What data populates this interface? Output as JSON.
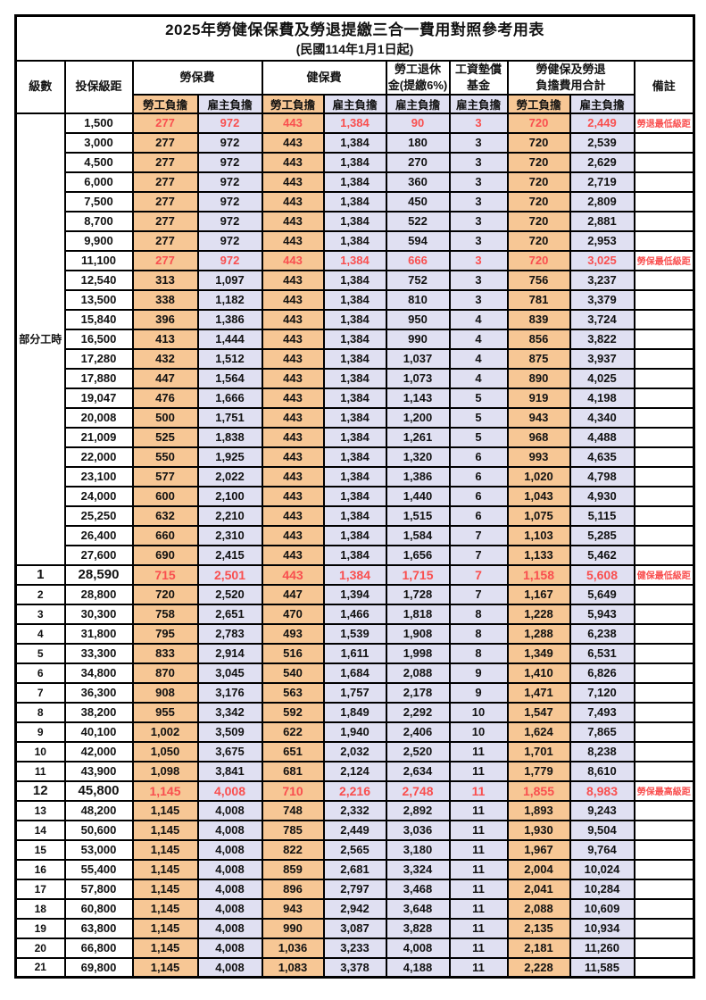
{
  "title": "2025年勞健保保費及勞退提繳三合一費用對照參考用表",
  "subtitle": "(民國114年1月1日起)",
  "colors": {
    "employee_bg": "#F7C795",
    "employer_bg": "#E0E0F2",
    "highlight_text": "#F94F4F",
    "border": "#000000"
  },
  "header": {
    "level_label": "級數",
    "bracket_label": "投保級距",
    "labor_label": "勞保費",
    "health_label": "健保費",
    "pension_line1": "勞工退休",
    "pension_line2": "金(提繳6%)",
    "wage_fund_line1": "工資墊償",
    "wage_fund_line2": "基金",
    "total_line1": "勞健保及勞退",
    "total_line2": "負擔費用合計",
    "remarks_label": "備註",
    "employee_label": "勞工負擔",
    "employer_label": "雇主負擔"
  },
  "part_time_label": "部分工時",
  "table": {
    "value_column_pattern": [
      "emp",
      "er",
      "emp",
      "er",
      "er",
      "er",
      "emp",
      "er"
    ],
    "rows": [
      {
        "level": null,
        "bracket": "1,500",
        "values": [
          "277",
          "972",
          "443",
          "1,384",
          "90",
          "3",
          "720",
          "2,449"
        ],
        "remark": "勞退最低級距",
        "highlight": true,
        "emphasis": false
      },
      {
        "level": null,
        "bracket": "3,000",
        "values": [
          "277",
          "972",
          "443",
          "1,384",
          "180",
          "3",
          "720",
          "2,539"
        ],
        "remark": "",
        "highlight": false,
        "emphasis": false
      },
      {
        "level": null,
        "bracket": "4,500",
        "values": [
          "277",
          "972",
          "443",
          "1,384",
          "270",
          "3",
          "720",
          "2,629"
        ],
        "remark": "",
        "highlight": false,
        "emphasis": false
      },
      {
        "level": null,
        "bracket": "6,000",
        "values": [
          "277",
          "972",
          "443",
          "1,384",
          "360",
          "3",
          "720",
          "2,719"
        ],
        "remark": "",
        "highlight": false,
        "emphasis": false
      },
      {
        "level": null,
        "bracket": "7,500",
        "values": [
          "277",
          "972",
          "443",
          "1,384",
          "450",
          "3",
          "720",
          "2,809"
        ],
        "remark": "",
        "highlight": false,
        "emphasis": false
      },
      {
        "level": null,
        "bracket": "8,700",
        "values": [
          "277",
          "972",
          "443",
          "1,384",
          "522",
          "3",
          "720",
          "2,881"
        ],
        "remark": "",
        "highlight": false,
        "emphasis": false
      },
      {
        "level": null,
        "bracket": "9,900",
        "values": [
          "277",
          "972",
          "443",
          "1,384",
          "594",
          "3",
          "720",
          "2,953"
        ],
        "remark": "",
        "highlight": false,
        "emphasis": false
      },
      {
        "level": null,
        "bracket": "11,100",
        "values": [
          "277",
          "972",
          "443",
          "1,384",
          "666",
          "3",
          "720",
          "3,025"
        ],
        "remark": "勞保最低級距",
        "highlight": true,
        "emphasis": false
      },
      {
        "level": null,
        "bracket": "12,540",
        "values": [
          "313",
          "1,097",
          "443",
          "1,384",
          "752",
          "3",
          "756",
          "3,237"
        ],
        "remark": "",
        "highlight": false,
        "emphasis": false
      },
      {
        "level": null,
        "bracket": "13,500",
        "values": [
          "338",
          "1,182",
          "443",
          "1,384",
          "810",
          "3",
          "781",
          "3,379"
        ],
        "remark": "",
        "highlight": false,
        "emphasis": false
      },
      {
        "level": null,
        "bracket": "15,840",
        "values": [
          "396",
          "1,386",
          "443",
          "1,384",
          "950",
          "4",
          "839",
          "3,724"
        ],
        "remark": "",
        "highlight": false,
        "emphasis": false
      },
      {
        "level": null,
        "bracket": "16,500",
        "values": [
          "413",
          "1,444",
          "443",
          "1,384",
          "990",
          "4",
          "856",
          "3,822"
        ],
        "remark": "",
        "highlight": false,
        "emphasis": false
      },
      {
        "level": null,
        "bracket": "17,280",
        "values": [
          "432",
          "1,512",
          "443",
          "1,384",
          "1,037",
          "4",
          "875",
          "3,937"
        ],
        "remark": "",
        "highlight": false,
        "emphasis": false
      },
      {
        "level": null,
        "bracket": "17,880",
        "values": [
          "447",
          "1,564",
          "443",
          "1,384",
          "1,073",
          "4",
          "890",
          "4,025"
        ],
        "remark": "",
        "highlight": false,
        "emphasis": false
      },
      {
        "level": null,
        "bracket": "19,047",
        "values": [
          "476",
          "1,666",
          "443",
          "1,384",
          "1,143",
          "5",
          "919",
          "4,198"
        ],
        "remark": "",
        "highlight": false,
        "emphasis": false
      },
      {
        "level": null,
        "bracket": "20,008",
        "values": [
          "500",
          "1,751",
          "443",
          "1,384",
          "1,200",
          "5",
          "943",
          "4,340"
        ],
        "remark": "",
        "highlight": false,
        "emphasis": false
      },
      {
        "level": null,
        "bracket": "21,009",
        "values": [
          "525",
          "1,838",
          "443",
          "1,384",
          "1,261",
          "5",
          "968",
          "4,488"
        ],
        "remark": "",
        "highlight": false,
        "emphasis": false
      },
      {
        "level": null,
        "bracket": "22,000",
        "values": [
          "550",
          "1,925",
          "443",
          "1,384",
          "1,320",
          "6",
          "993",
          "4,635"
        ],
        "remark": "",
        "highlight": false,
        "emphasis": false
      },
      {
        "level": null,
        "bracket": "23,100",
        "values": [
          "577",
          "2,022",
          "443",
          "1,384",
          "1,386",
          "6",
          "1,020",
          "4,798"
        ],
        "remark": "",
        "highlight": false,
        "emphasis": false
      },
      {
        "level": null,
        "bracket": "24,000",
        "values": [
          "600",
          "2,100",
          "443",
          "1,384",
          "1,440",
          "6",
          "1,043",
          "4,930"
        ],
        "remark": "",
        "highlight": false,
        "emphasis": false
      },
      {
        "level": null,
        "bracket": "25,250",
        "values": [
          "632",
          "2,210",
          "443",
          "1,384",
          "1,515",
          "6",
          "1,075",
          "5,115"
        ],
        "remark": "",
        "highlight": false,
        "emphasis": false
      },
      {
        "level": null,
        "bracket": "26,400",
        "values": [
          "660",
          "2,310",
          "443",
          "1,384",
          "1,584",
          "7",
          "1,103",
          "5,285"
        ],
        "remark": "",
        "highlight": false,
        "emphasis": false
      },
      {
        "level": null,
        "bracket": "27,600",
        "values": [
          "690",
          "2,415",
          "443",
          "1,384",
          "1,656",
          "7",
          "1,133",
          "5,462"
        ],
        "remark": "",
        "highlight": false,
        "emphasis": false
      },
      {
        "level": "1",
        "bracket": "28,590",
        "values": [
          "715",
          "2,501",
          "443",
          "1,384",
          "1,715",
          "7",
          "1,158",
          "5,608"
        ],
        "remark": "健保最低級距",
        "highlight": true,
        "emphasis": true
      },
      {
        "level": "2",
        "bracket": "28,800",
        "values": [
          "720",
          "2,520",
          "447",
          "1,394",
          "1,728",
          "7",
          "1,167",
          "5,649"
        ],
        "remark": "",
        "highlight": false,
        "emphasis": false
      },
      {
        "level": "3",
        "bracket": "30,300",
        "values": [
          "758",
          "2,651",
          "470",
          "1,466",
          "1,818",
          "8",
          "1,228",
          "5,943"
        ],
        "remark": "",
        "highlight": false,
        "emphasis": false
      },
      {
        "level": "4",
        "bracket": "31,800",
        "values": [
          "795",
          "2,783",
          "493",
          "1,539",
          "1,908",
          "8",
          "1,288",
          "6,238"
        ],
        "remark": "",
        "highlight": false,
        "emphasis": false
      },
      {
        "level": "5",
        "bracket": "33,300",
        "values": [
          "833",
          "2,914",
          "516",
          "1,611",
          "1,998",
          "8",
          "1,349",
          "6,531"
        ],
        "remark": "",
        "highlight": false,
        "emphasis": false
      },
      {
        "level": "6",
        "bracket": "34,800",
        "values": [
          "870",
          "3,045",
          "540",
          "1,684",
          "2,088",
          "9",
          "1,410",
          "6,826"
        ],
        "remark": "",
        "highlight": false,
        "emphasis": false
      },
      {
        "level": "7",
        "bracket": "36,300",
        "values": [
          "908",
          "3,176",
          "563",
          "1,757",
          "2,178",
          "9",
          "1,471",
          "7,120"
        ],
        "remark": "",
        "highlight": false,
        "emphasis": false
      },
      {
        "level": "8",
        "bracket": "38,200",
        "values": [
          "955",
          "3,342",
          "592",
          "1,849",
          "2,292",
          "10",
          "1,547",
          "7,493"
        ],
        "remark": "",
        "highlight": false,
        "emphasis": false
      },
      {
        "level": "9",
        "bracket": "40,100",
        "values": [
          "1,002",
          "3,509",
          "622",
          "1,940",
          "2,406",
          "10",
          "1,624",
          "7,865"
        ],
        "remark": "",
        "highlight": false,
        "emphasis": false
      },
      {
        "level": "10",
        "bracket": "42,000",
        "values": [
          "1,050",
          "3,675",
          "651",
          "2,032",
          "2,520",
          "11",
          "1,701",
          "8,238"
        ],
        "remark": "",
        "highlight": false,
        "emphasis": false
      },
      {
        "level": "11",
        "bracket": "43,900",
        "values": [
          "1,098",
          "3,841",
          "681",
          "2,124",
          "2,634",
          "11",
          "1,779",
          "8,610"
        ],
        "remark": "",
        "highlight": false,
        "emphasis": false
      },
      {
        "level": "12",
        "bracket": "45,800",
        "values": [
          "1,145",
          "4,008",
          "710",
          "2,216",
          "2,748",
          "11",
          "1,855",
          "8,983"
        ],
        "remark": "勞保最高級距",
        "highlight": true,
        "emphasis": true
      },
      {
        "level": "13",
        "bracket": "48,200",
        "values": [
          "1,145",
          "4,008",
          "748",
          "2,332",
          "2,892",
          "11",
          "1,893",
          "9,243"
        ],
        "remark": "",
        "highlight": false,
        "emphasis": false
      },
      {
        "level": "14",
        "bracket": "50,600",
        "values": [
          "1,145",
          "4,008",
          "785",
          "2,449",
          "3,036",
          "11",
          "1,930",
          "9,504"
        ],
        "remark": "",
        "highlight": false,
        "emphasis": false
      },
      {
        "level": "15",
        "bracket": "53,000",
        "values": [
          "1,145",
          "4,008",
          "822",
          "2,565",
          "3,180",
          "11",
          "1,967",
          "9,764"
        ],
        "remark": "",
        "highlight": false,
        "emphasis": false
      },
      {
        "level": "16",
        "bracket": "55,400",
        "values": [
          "1,145",
          "4,008",
          "859",
          "2,681",
          "3,324",
          "11",
          "2,004",
          "10,024"
        ],
        "remark": "",
        "highlight": false,
        "emphasis": false
      },
      {
        "level": "17",
        "bracket": "57,800",
        "values": [
          "1,145",
          "4,008",
          "896",
          "2,797",
          "3,468",
          "11",
          "2,041",
          "10,284"
        ],
        "remark": "",
        "highlight": false,
        "emphasis": false
      },
      {
        "level": "18",
        "bracket": "60,800",
        "values": [
          "1,145",
          "4,008",
          "943",
          "2,942",
          "3,648",
          "11",
          "2,088",
          "10,609"
        ],
        "remark": "",
        "highlight": false,
        "emphasis": false
      },
      {
        "level": "19",
        "bracket": "63,800",
        "values": [
          "1,145",
          "4,008",
          "990",
          "3,087",
          "3,828",
          "11",
          "2,135",
          "10,934"
        ],
        "remark": "",
        "highlight": false,
        "emphasis": false
      },
      {
        "level": "20",
        "bracket": "66,800",
        "values": [
          "1,145",
          "4,008",
          "1,036",
          "3,233",
          "4,008",
          "11",
          "2,181",
          "11,260"
        ],
        "remark": "",
        "highlight": false,
        "emphasis": false
      },
      {
        "level": "21",
        "bracket": "69,800",
        "values": [
          "1,145",
          "4,008",
          "1,083",
          "3,378",
          "4,188",
          "11",
          "2,228",
          "11,585"
        ],
        "remark": "",
        "highlight": false,
        "emphasis": false
      }
    ]
  }
}
